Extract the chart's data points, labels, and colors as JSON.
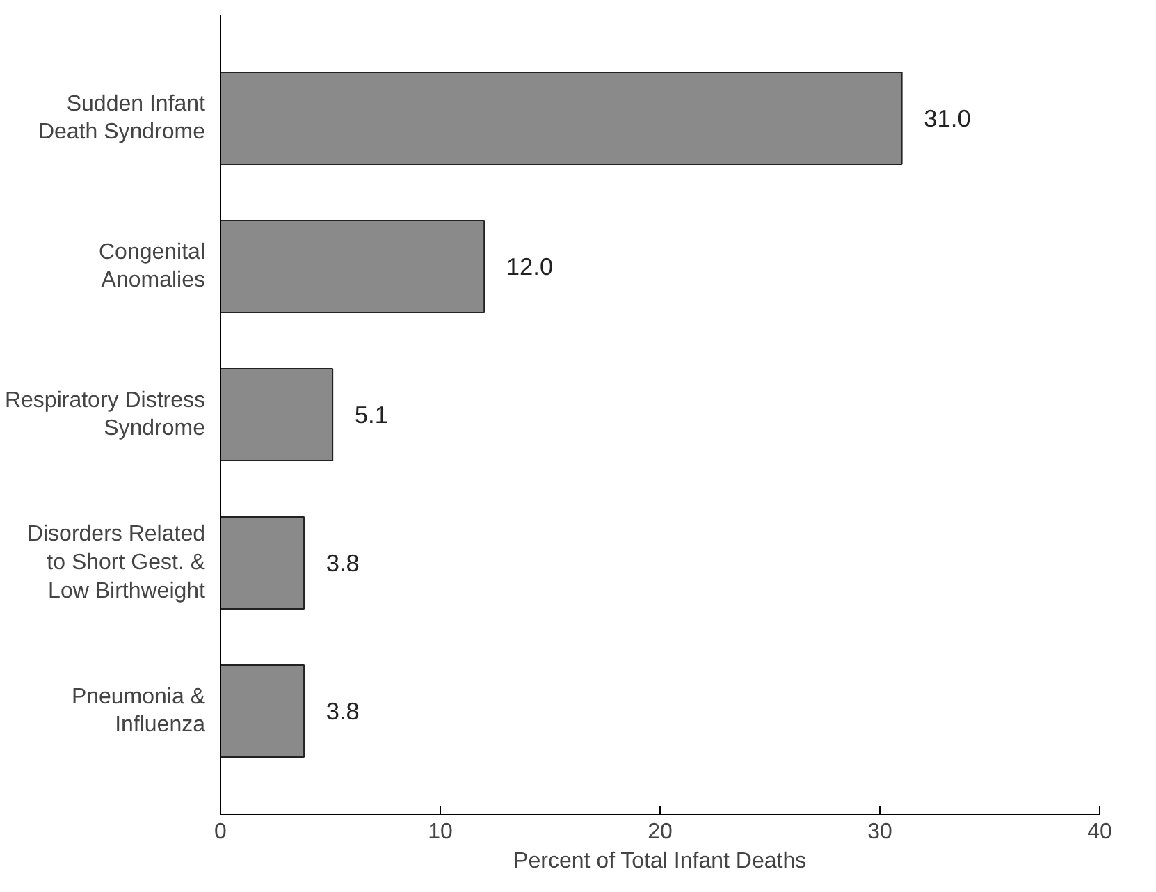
{
  "chart_data": {
    "type": "bar",
    "orientation": "horizontal",
    "categories": [
      "Sudden Infant\nDeath Syndrome",
      "Congenital\nAnomalies",
      "Respiratory Distress\nSyndrome",
      "Disorders Related\nto Short Gest. &\nLow Birthweight",
      "Pneumonia &\nInfluenza"
    ],
    "values": [
      31.0,
      12.0,
      5.1,
      3.8,
      3.8
    ],
    "color": "#8a8a8a",
    "value_labels": [
      "31.0",
      "12.0",
      "5.1",
      "3.8",
      "3.8"
    ],
    "xlabel": "Percent of Total Infant Deaths",
    "xlim": [
      0,
      40
    ],
    "xticks": [
      0,
      10,
      20,
      30,
      40
    ],
    "grid": false
  }
}
